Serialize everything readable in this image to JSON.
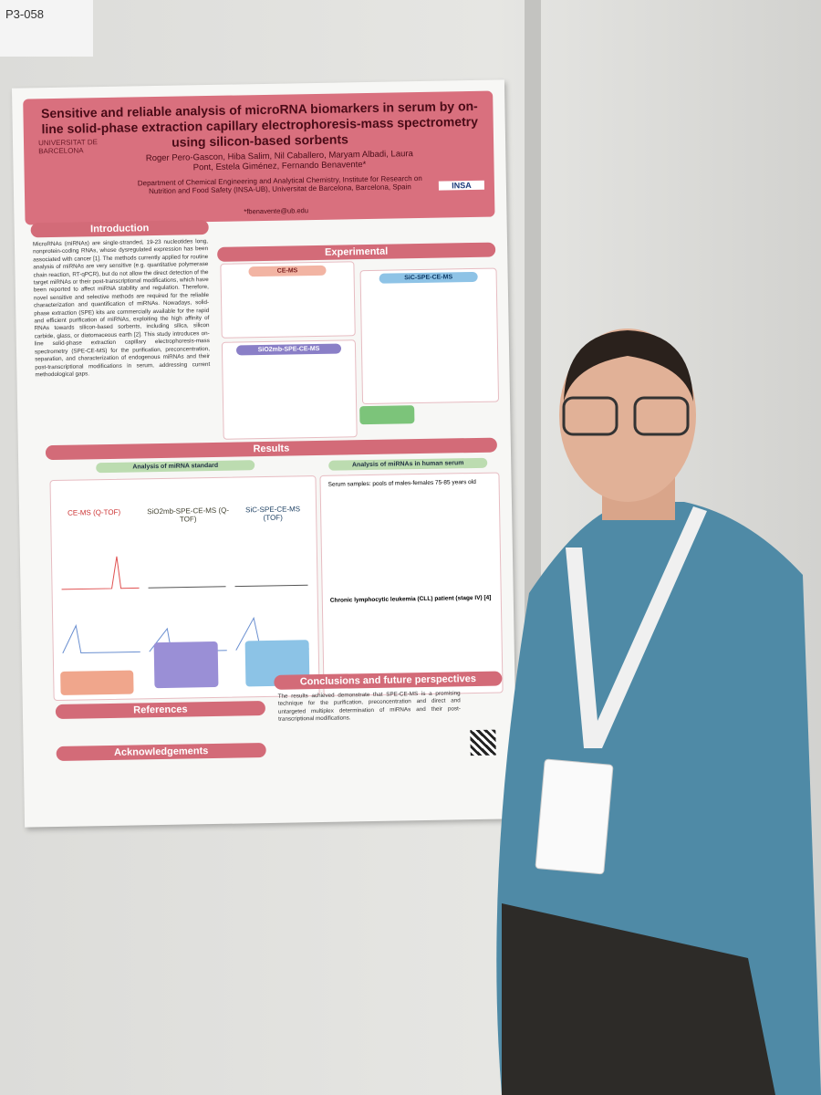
{
  "sign": "P3-058",
  "poster": {
    "title": "Sensitive and reliable analysis of microRNA biomarkers in serum by on-line solid-phase extraction capillary electrophoresis-mass spectrometry using silicon-based sorbents",
    "authors": "Roger Pero-Gascon, Hiba Salim, Nil Caballero, Maryam Albadi, Laura Pont, Estela Giménez, Fernando Benavente*",
    "affiliation": "Department of Chemical Engineering and Analytical Chemistry, Institute for Research on Nutrition and Food Safety (INSA-UB), Universitat de Barcelona, Barcelona, Spain",
    "email": "*fbenavente@ub.edu",
    "university": "UNIVERSITAT DE BARCELONA",
    "institute": "INSA",
    "introduction": {
      "heading": "Introduction",
      "text": "MicroRNAs (miRNAs) are single-stranded, 19-23 nucleotides long, nonprotein-coding RNAs, whose dysregulated expression has been associated with cancer [1]. The methods currently applied for routine analysis of miRNAs are very sensitive (e.g. quantitative polymerase chain reaction, RT-qPCR), but do not allow the direct detection of the target miRNAs or their post-transcriptional modifications, which have been reported to affect miRNA stability and regulation. Therefore, novel sensitive and selective methods are required for the reliable characterization and quantification of miRNAs. Nowadays, solid-phase extraction (SPE) kits are commercially available for the rapid and efficient purification of miRNAs, exploiting the high affinity of RNAs towards silicon-based sorbents, including silica, silicon carbide, glass, or diatomaceous earth [2]. This study introduces on-line solid-phase extraction capillary electrophoresis-mass spectrometry (SPE-CE-MS) for the purification, preconcentration, separation, and characterization of endogenous miRNAs and their post-transcriptional modifications in serum, addressing current methodological gaps."
    },
    "experimental": {
      "heading": "Experimental",
      "methods": [
        "CE-MS",
        "SiC-SPE-CE-MS",
        "SiO2mb-SPE-CE-MS"
      ]
    },
    "results": {
      "heading": "Results",
      "columns": [
        "Analysis of miRNA standard",
        "Analysis of miRNAs in human serum"
      ],
      "techniques": [
        "CE-MS (Q-TOF)",
        "SiO2mb-SPE-CE-MS (Q-TOF)",
        "SiC-SPE-CE-MS (TOF)"
      ],
      "serum": "Serum samples: pools of males-females 75-85 years old",
      "cll": "Chronic lymphocytic leukemia (CLL) patient (stage IV) [4]"
    },
    "references": {
      "heading": "References"
    },
    "acknowledgements": {
      "heading": "Acknowledgements"
    },
    "conclusions": {
      "heading": "Conclusions and future perspectives",
      "text": "The results achieved demonstrate that SPE-CE-MS is a promising technique for the purification, preconcentration and direct and untargeted multiplex determination of miRNAs and their post-transcriptional modifications."
    }
  }
}
